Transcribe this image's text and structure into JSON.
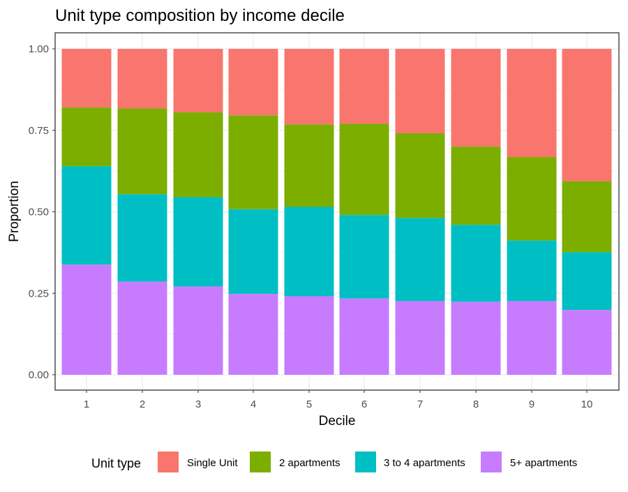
{
  "chart_data": {
    "type": "bar",
    "stacked": true,
    "title": "Unit type composition by income decile",
    "xlabel": "Decile",
    "ylabel": "Proportion",
    "categories": [
      "1",
      "2",
      "3",
      "4",
      "5",
      "6",
      "7",
      "8",
      "9",
      "10"
    ],
    "ylim": [
      0,
      1
    ],
    "yticks": [
      "0.00",
      "0.25",
      "0.50",
      "0.75",
      "1.00"
    ],
    "ytick_values": [
      0,
      0.25,
      0.5,
      0.75,
      1.0
    ],
    "grid": true,
    "legend": {
      "title": "Unit type",
      "position": "bottom"
    },
    "series": [
      {
        "name": "5+ apartments",
        "color": "#C77CFF",
        "values": [
          0.338,
          0.286,
          0.271,
          0.248,
          0.241,
          0.234,
          0.226,
          0.224,
          0.226,
          0.199
        ]
      },
      {
        "name": "3 to 4 apartments",
        "color": "#00BFC4",
        "values": [
          0.302,
          0.268,
          0.274,
          0.26,
          0.274,
          0.256,
          0.255,
          0.236,
          0.186,
          0.177
        ]
      },
      {
        "name": "2 apartments",
        "color": "#7CAE00",
        "values": [
          0.18,
          0.263,
          0.26,
          0.288,
          0.253,
          0.28,
          0.26,
          0.24,
          0.256,
          0.218
        ]
      },
      {
        "name": "Single Unit",
        "color": "#F8766D",
        "values": [
          0.18,
          0.183,
          0.195,
          0.204,
          0.232,
          0.23,
          0.259,
          0.3,
          0.332,
          0.406
        ]
      }
    ],
    "legend_order": [
      "Single Unit",
      "2 apartments",
      "3 to 4 apartments",
      "5+ apartments"
    ]
  }
}
